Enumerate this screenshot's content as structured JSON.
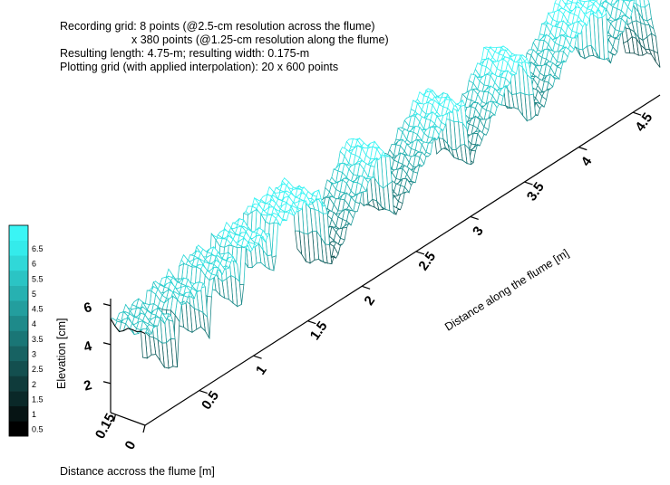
{
  "header": {
    "line1": "Recording grid: 8 points (@2.5-cm resolution across the flume)",
    "line2": "x 380 points (@1.25-cm resolution along the flume)",
    "line3": "Resulting length: 4.75-m; resulting width: 0.175-m",
    "line4": "Plotting grid (with applied interpolation): 20 x 600 points"
  },
  "chart_data": {
    "type": "surface",
    "xlabel": "Distance accross the flume [m]",
    "ylabel": "Distance along the flume [m]",
    "zlabel": "Elevation [cm]",
    "x_ticks": [
      "0.15",
      "0"
    ],
    "y_ticks": [
      "0.5",
      "1",
      "1.5",
      "2",
      "2.5",
      "3",
      "3.5",
      "4",
      "4.5"
    ],
    "z_ticks": [
      "2",
      "4",
      "6"
    ],
    "xlim": [
      0,
      0.175
    ],
    "ylim": [
      0,
      4.75
    ],
    "zlim": [
      0.5,
      7
    ],
    "colorbar": {
      "ticks": [
        "0.5",
        "1",
        "1.5",
        "2",
        "2.5",
        "3",
        "3.5",
        "4",
        "4.5",
        "5",
        "5.5",
        "6",
        "6.5"
      ],
      "colors": [
        "#000000",
        "#061414",
        "#0a2828",
        "#0f3b3b",
        "#134f4f",
        "#176262",
        "#1a7676",
        "#1e8a8a",
        "#239e9e",
        "#27b1b1",
        "#2bc4c4",
        "#30d8d8",
        "#34ebeb",
        "#3af5f5"
      ]
    },
    "profile": {
      "y": [
        0,
        0.05,
        0.25,
        0.3,
        0.32,
        0.55,
        0.6,
        0.62,
        0.85,
        0.9,
        0.92,
        1.15,
        1.2,
        1.22,
        1.6,
        1.68,
        1.72,
        2.18,
        2.25,
        2.3,
        2.85,
        2.95,
        3.0,
        3.45,
        3.55,
        3.6,
        4.1,
        4.25,
        4.28,
        4.6,
        4.75
      ],
      "z": [
        5.1,
        5.2,
        5.4,
        2.2,
        5.5,
        5.7,
        2.6,
        5.9,
        6.0,
        3.0,
        6.1,
        6.2,
        3.5,
        6.5,
        6.6,
        5.6,
        2.5,
        6.7,
        6.5,
        3.0,
        6.7,
        6.4,
        3.2,
        6.8,
        6.6,
        3.4,
        6.9,
        6.8,
        3.6,
        7.0,
        2.2
      ]
    }
  }
}
